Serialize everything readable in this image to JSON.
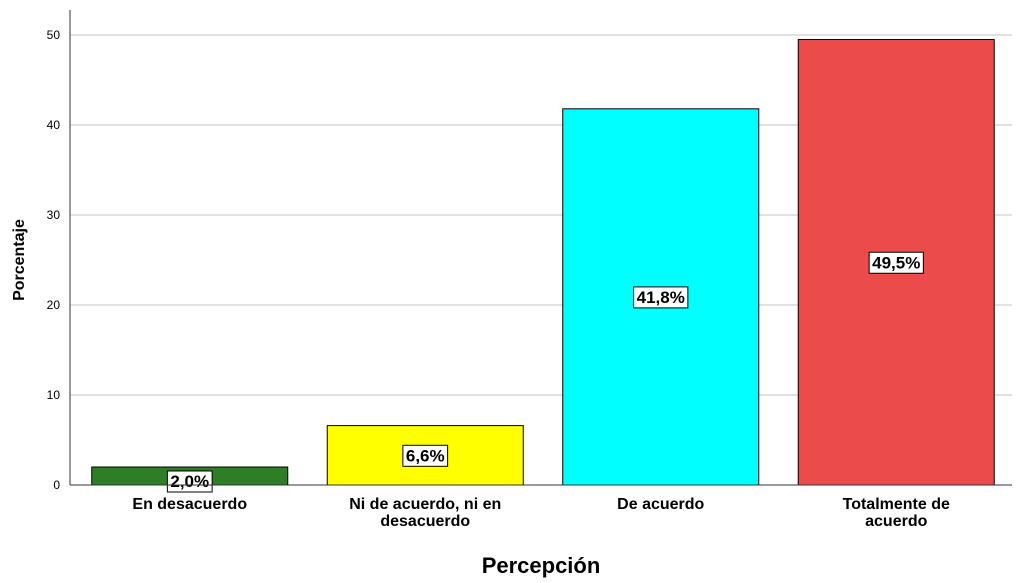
{
  "chart_data": {
    "type": "bar",
    "categories": [
      [
        "En desacuerdo"
      ],
      [
        "Ni de acuerdo, ni en",
        "desacuerdo"
      ],
      [
        "De acuerdo"
      ],
      [
        "Totalmente de",
        "acuerdo"
      ]
    ],
    "values": [
      2.0,
      6.6,
      41.8,
      49.5
    ],
    "data_labels": [
      "2,0%",
      "6,6%",
      "41,8%",
      "49,5%"
    ],
    "colors": [
      "#2e7d27",
      "#ffff00",
      "#00ffff",
      "#eb4b4b"
    ],
    "xlabel": "Percepción",
    "ylabel": "Porcentaje",
    "ylim": [
      0,
      50
    ],
    "yticks": [
      0,
      10,
      20,
      30,
      40,
      50
    ],
    "grid": true
  }
}
